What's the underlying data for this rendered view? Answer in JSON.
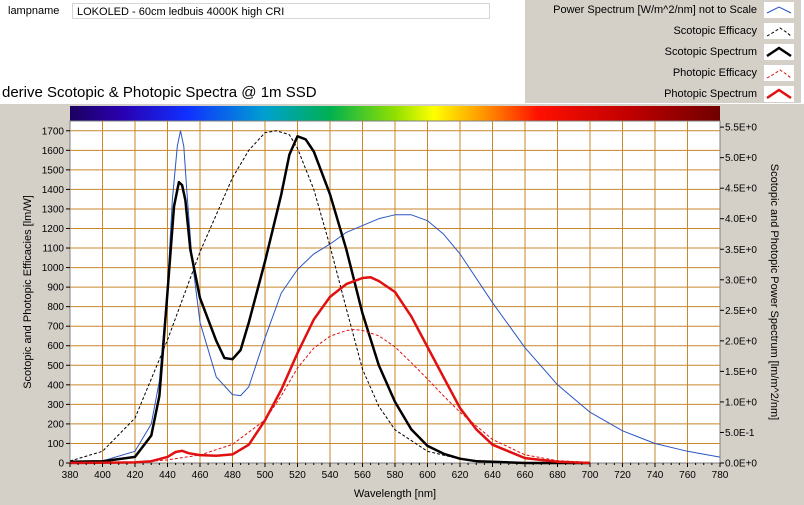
{
  "lamp": {
    "label": "lampname",
    "value": "LOKOLED - 60cm ledbuis 4000K high CRI"
  },
  "legend": [
    {
      "label": "Power Spectrum [W/m^2/nm] not to Scale",
      "color": "#2a55c4",
      "dash": "",
      "width": 1
    },
    {
      "label": "Scotopic Efficacy",
      "color": "#000000",
      "dash": "3,2",
      "width": 1
    },
    {
      "label": "Scotopic Spectrum",
      "color": "#000000",
      "dash": "",
      "width": 2.5
    },
    {
      "label": "Photopic Efficacy",
      "color": "#e01010",
      "dash": "3,2",
      "width": 1
    },
    {
      "label": "Photopic Spectrum",
      "color": "#e01010",
      "dash": "",
      "width": 2.5
    }
  ],
  "chart_data": {
    "type": "line",
    "title": "derive Scotopic & Photopic Spectra @ 1m SSD",
    "xlabel": "Wavelength [nm]",
    "ylabel": "Scotopic and Photopic Efficacies [lm/W]",
    "ylabel_right": "Scotopic and Photopic Power Spectrum [lm/m^2/nm]",
    "xlim": [
      380,
      780
    ],
    "ylim": [
      0,
      1750
    ],
    "ylim_right": [
      0,
      5.6
    ],
    "grid": true,
    "x_ticks": [
      380,
      400,
      420,
      440,
      460,
      480,
      500,
      520,
      540,
      560,
      580,
      600,
      620,
      640,
      660,
      680,
      700,
      720,
      740,
      760,
      780
    ],
    "y_ticks": [
      0,
      100,
      200,
      300,
      400,
      500,
      600,
      700,
      800,
      900,
      1000,
      1100,
      1200,
      1300,
      1400,
      1500,
      1600,
      1700
    ],
    "y_ticks_right": [
      "0.0E+0",
      "5.0E-1",
      "1.0E+0",
      "1.5E+0",
      "2.0E+0",
      "2.5E+0",
      "3.0E+0",
      "3.5E+0",
      "4.0E+0",
      "4.5E+0",
      "5.0E+0",
      "5.5E+0"
    ],
    "y_ticks_right_values": [
      0,
      0.5,
      1.0,
      1.5,
      2.0,
      2.5,
      3.0,
      3.5,
      4.0,
      4.5,
      5.0,
      5.5
    ],
    "series": [
      {
        "name": "Power Spectrum [W/m^2/nm] not to Scale",
        "axis": "left",
        "color": "#2a55c4",
        "dash": "",
        "width": 1,
        "x": [
          380,
          400,
          420,
          430,
          435,
          440,
          443,
          446,
          448,
          450,
          452,
          455,
          460,
          470,
          480,
          485,
          490,
          500,
          510,
          520,
          530,
          540,
          550,
          560,
          570,
          580,
          590,
          600,
          610,
          620,
          640,
          660,
          680,
          700,
          720,
          740,
          760,
          780
        ],
        "y": [
          5,
          10,
          60,
          200,
          420,
          900,
          1350,
          1620,
          1700,
          1620,
          1380,
          1050,
          720,
          440,
          350,
          345,
          390,
          640,
          870,
          990,
          1070,
          1120,
          1180,
          1215,
          1250,
          1270,
          1270,
          1240,
          1170,
          1070,
          820,
          590,
          400,
          260,
          165,
          100,
          60,
          30
        ]
      },
      {
        "name": "Scotopic Efficacy",
        "axis": "left",
        "color": "#000000",
        "dash": "3,2",
        "width": 1,
        "x": [
          380,
          400,
          420,
          440,
          460,
          480,
          490,
          500,
          507,
          515,
          520,
          530,
          540,
          550,
          560,
          570,
          580,
          600,
          620,
          640,
          660,
          680,
          700
        ],
        "y": [
          10,
          60,
          230,
          630,
          1080,
          1460,
          1600,
          1690,
          1700,
          1680,
          1610,
          1400,
          1110,
          790,
          480,
          290,
          170,
          60,
          20,
          5,
          2,
          1,
          0
        ]
      },
      {
        "name": "Scotopic Spectrum",
        "axis": "right",
        "color": "#000000",
        "dash": "",
        "width": 2.5,
        "x": [
          380,
          400,
          420,
          430,
          435,
          440,
          444,
          447,
          449,
          451,
          454,
          460,
          470,
          475,
          480,
          485,
          490,
          500,
          510,
          515,
          520,
          525,
          530,
          540,
          550,
          560,
          570,
          580,
          590,
          600,
          610,
          620,
          630,
          640,
          660,
          680,
          700
        ],
        "y": [
          0.02,
          0.03,
          0.1,
          0.45,
          1.1,
          2.8,
          4.2,
          4.6,
          4.55,
          4.3,
          3.5,
          2.7,
          2.0,
          1.72,
          1.7,
          1.85,
          2.3,
          3.3,
          4.4,
          5.05,
          5.35,
          5.3,
          5.1,
          4.4,
          3.5,
          2.45,
          1.6,
          1.0,
          0.55,
          0.28,
          0.15,
          0.07,
          0.03,
          0.02,
          0,
          0,
          0
        ]
      },
      {
        "name": "Photopic Efficacy",
        "axis": "left",
        "color": "#e01010",
        "dash": "3,2",
        "width": 1,
        "x": [
          380,
          400,
          420,
          440,
          460,
          480,
          500,
          510,
          520,
          530,
          540,
          550,
          555,
          560,
          570,
          580,
          590,
          600,
          610,
          620,
          640,
          660,
          680,
          700
        ],
        "y": [
          0,
          1,
          3,
          16,
          41,
          95,
          220,
          344,
          486,
          588,
          649,
          678,
          683,
          678,
          651,
          594,
          513,
          430,
          343,
          260,
          120,
          42,
          12,
          3
        ]
      },
      {
        "name": "Photopic Spectrum",
        "axis": "right",
        "color": "#e01010",
        "dash": "",
        "width": 2.5,
        "x": [
          380,
          420,
          430,
          440,
          445,
          449,
          453,
          460,
          470,
          480,
          490,
          500,
          510,
          520,
          530,
          540,
          550,
          560,
          565,
          570,
          580,
          590,
          600,
          610,
          620,
          630,
          640,
          660,
          680,
          700
        ],
        "y": [
          0,
          0.01,
          0.03,
          0.1,
          0.18,
          0.2,
          0.16,
          0.13,
          0.12,
          0.14,
          0.3,
          0.7,
          1.2,
          1.8,
          2.35,
          2.72,
          2.93,
          3.03,
          3.04,
          2.98,
          2.8,
          2.4,
          1.9,
          1.4,
          0.9,
          0.55,
          0.3,
          0.08,
          0.02,
          0
        ]
      }
    ]
  }
}
